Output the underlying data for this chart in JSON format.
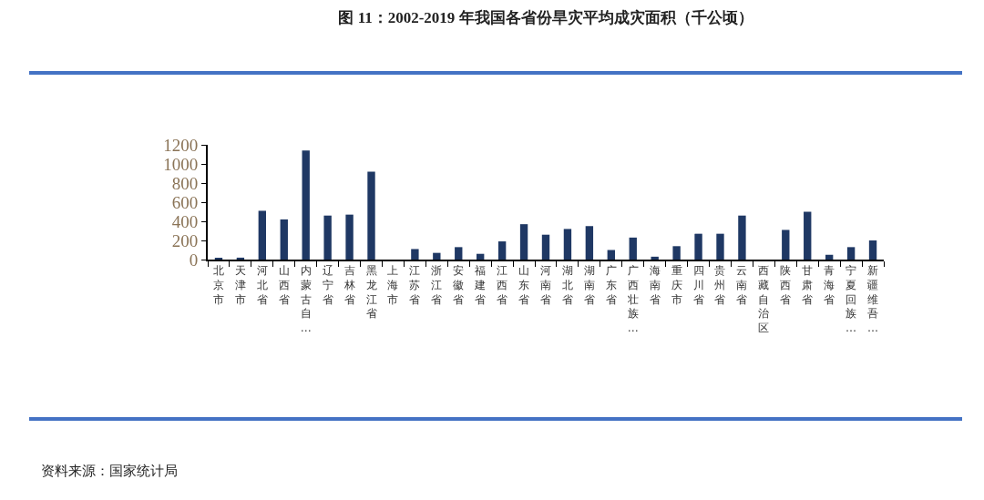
{
  "chart_data": {
    "type": "bar",
    "title": "图 11：2002-2019 年我国各省份旱灾平均成灾面积（千公顷）",
    "categories": [
      "北京市",
      "天津市",
      "河北省",
      "山西省",
      "内蒙古自…",
      "辽宁省",
      "吉林省",
      "黑龙江省",
      "上海市",
      "江苏省",
      "浙江省",
      "安徽省",
      "福建省",
      "江西省",
      "山东省",
      "河南省",
      "湖北省",
      "湖南省",
      "广东省",
      "广西壮族…",
      "海南省",
      "重庆市",
      "四川省",
      "贵州省",
      "云南省",
      "西藏自治区",
      "陕西省",
      "甘肃省",
      "青海省",
      "宁夏回族…",
      "新疆维吾…"
    ],
    "values": [
      10,
      20,
      510,
      420,
      1140,
      460,
      470,
      920,
      0,
      110,
      70,
      130,
      60,
      190,
      370,
      260,
      320,
      350,
      100,
      230,
      30,
      140,
      270,
      270,
      460,
      0,
      310,
      500,
      50,
      130,
      200
    ],
    "color": "#1f3864",
    "ylim": [
      0,
      1200
    ],
    "yticks": [
      0,
      200,
      400,
      600,
      800,
      1000,
      1200
    ],
    "grid": false,
    "annotations": [
      "资料来源：国家统计局"
    ]
  }
}
